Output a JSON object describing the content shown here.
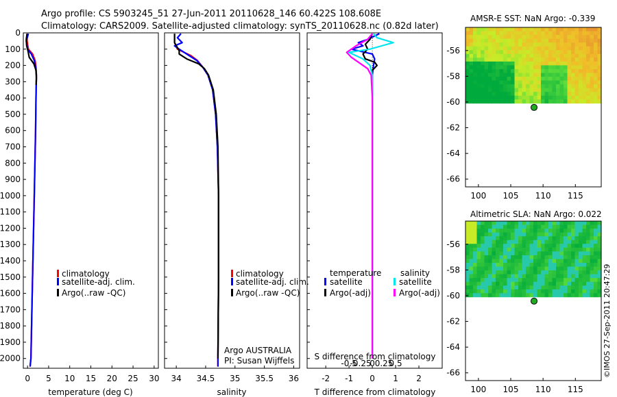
{
  "header": {
    "line1": "Argo profile: CS 5903245_51 27-Jun-2011 20110628_146 60.422S 108.608E",
    "line2": "Climatology: CARS2009. Satellite-adjusted climatology: synTS_20110628.nc (0.82d later)"
  },
  "colors": {
    "climatology": "#ff0000",
    "satellite": "#0000ff",
    "argo": "#000000",
    "salinity_satellite": "#00e5ee",
    "salinity_argo": "#ff00ff",
    "station_marker": "#22aa22"
  },
  "chart_data": [
    {
      "id": "temperature",
      "type": "line",
      "xlabel": "temperature (deg C)",
      "ylabel": "",
      "xlim": [
        -1,
        31
      ],
      "ylim": [
        2060,
        0
      ],
      "xticks": [
        0,
        5,
        10,
        15,
        20,
        25,
        30
      ],
      "yticks": [
        0,
        100,
        200,
        300,
        400,
        500,
        600,
        700,
        800,
        900,
        1000,
        1100,
        1200,
        1300,
        1400,
        1500,
        1600,
        1700,
        1800,
        1900,
        2000
      ],
      "legend": [
        "climatology",
        "satellite-adj. clim.",
        "Argo(..raw -QC)"
      ],
      "series": [
        {
          "name": "climatology",
          "color_key": "climatology",
          "depth": [
            5,
            50,
            100,
            130,
            170,
            210,
            260,
            400,
            600,
            1000,
            1500,
            2000,
            2050
          ],
          "values": [
            -0.1,
            -0.1,
            0.2,
            1.2,
            1.8,
            2.0,
            2.1,
            2.0,
            1.9,
            1.6,
            1.2,
            0.8,
            0.6
          ]
        },
        {
          "name": "satellite-adj. clim.",
          "color_key": "satellite",
          "depth": [
            5,
            50,
            100,
            130,
            170,
            210,
            260,
            400,
            600,
            1000,
            1500,
            2000,
            2050
          ],
          "values": [
            0.2,
            -0.3,
            0.0,
            0.9,
            1.6,
            1.9,
            2.1,
            2.0,
            1.9,
            1.6,
            1.2,
            0.8,
            0.6
          ]
        },
        {
          "name": "Argo(..raw -QC)",
          "color_key": "argo",
          "depth": [
            5,
            40,
            80,
            110,
            150,
            190,
            230,
            280,
            320
          ],
          "values": [
            -0.1,
            -0.3,
            -0.2,
            0.1,
            0.4,
            1.5,
            2.0,
            2.1,
            2.05
          ]
        }
      ]
    },
    {
      "id": "salinity",
      "type": "line",
      "xlabel": "salinity",
      "ylabel": "",
      "xlim": [
        33.8,
        36.1
      ],
      "ylim": [
        2060,
        0
      ],
      "xticks": [
        34,
        34.5,
        35,
        35.5,
        36
      ],
      "yticks": [
        0,
        100,
        200,
        300,
        400,
        500,
        600,
        700,
        800,
        900,
        1000,
        1100,
        1200,
        1300,
        1400,
        1500,
        1600,
        1700,
        1800,
        1900,
        2000
      ],
      "legend": [
        "climatology",
        "satellite-adj. clim.",
        "Argo(..raw -QC)"
      ],
      "annotations": [
        "Argo AUSTRALIA",
        "PI: Susan Wijffels"
      ],
      "series": [
        {
          "name": "climatology",
          "color_key": "climatology",
          "depth": [
            5,
            60,
            100,
            140,
            170,
            210,
            260,
            350,
            500,
            700,
            1000,
            1500,
            2000,
            2050
          ],
          "values": [
            33.97,
            33.97,
            34.02,
            34.25,
            34.36,
            34.45,
            34.54,
            34.62,
            34.67,
            34.7,
            34.72,
            34.72,
            34.71,
            34.71
          ]
        },
        {
          "name": "satellite-adj. clim.",
          "color_key": "satellite",
          "depth": [
            5,
            30,
            60,
            80,
            100,
            140,
            170,
            210,
            260,
            350,
            500,
            700,
            1000,
            1500,
            2000,
            2050
          ],
          "values": [
            34.08,
            34.02,
            34.1,
            33.97,
            34.05,
            34.22,
            34.35,
            34.45,
            34.54,
            34.62,
            34.67,
            34.7,
            34.72,
            34.72,
            34.71,
            34.71
          ]
        },
        {
          "name": "Argo(..raw -QC)",
          "color_key": "argo",
          "depth": [
            5,
            60,
            110,
            130,
            160,
            190,
            220,
            260,
            350,
            500,
            700,
            1000,
            1500,
            2000
          ],
          "values": [
            33.97,
            33.97,
            34.05,
            34.05,
            34.18,
            34.38,
            34.48,
            34.55,
            34.63,
            34.68,
            34.71,
            34.72,
            34.72,
            34.71
          ]
        }
      ]
    },
    {
      "id": "difference",
      "type": "line",
      "xlabel": "T difference from climatology",
      "xlabel_top": "S difference from climatology",
      "xlim": [
        -2.8,
        3.0
      ],
      "ylim": [
        2060,
        0
      ],
      "xticks": [
        -2,
        -1,
        0,
        1,
        2
      ],
      "xtick_labels": [
        "-2",
        "-1",
        "0",
        "1",
        "2"
      ],
      "sticks_labels": [
        "-0.5",
        "-0.25",
        "0",
        "0.25",
        "0.5"
      ],
      "yticks": [
        0,
        100,
        200,
        300,
        400,
        500,
        600,
        700,
        800,
        900,
        1000,
        1100,
        1200,
        1300,
        1400,
        1500,
        1600,
        1700,
        1800,
        1900,
        2000
      ],
      "legend_temperature_title": "temperature",
      "legend_salinity_title": "salinity",
      "legend_temperature": [
        "satellite",
        "Argo(-adj)"
      ],
      "legend_salinity": [
        "satellite",
        "Argo(-adj)"
      ],
      "series": [
        {
          "name": "temperature satellite",
          "color_key": "satellite",
          "depth": [
            5,
            40,
            60,
            80,
            100,
            130,
            160,
            200,
            260,
            400,
            1000,
            2000
          ],
          "values": [
            0.3,
            -0.2,
            -0.6,
            -0.4,
            -0.9,
            0.0,
            0.1,
            0.05,
            0.0,
            0.0,
            0.0,
            0.0
          ]
        },
        {
          "name": "temperature Argo(-adj)",
          "color_key": "argo",
          "depth": [
            5,
            40,
            70,
            100,
            130,
            160,
            180,
            200,
            230,
            260,
            400,
            1000,
            2000
          ],
          "values": [
            0.0,
            -0.1,
            -0.3,
            -0.2,
            -0.4,
            -0.3,
            0.1,
            0.2,
            0.0,
            0.0,
            0.0,
            0.0,
            0.0
          ]
        },
        {
          "name": "salinity satellite",
          "color_key": "salinity_satellite",
          "depth": [
            5,
            30,
            60,
            80,
            100,
            120,
            160,
            200,
            260,
            400,
            1000,
            2000
          ],
          "values": [
            0.05,
            0.2,
            0.9,
            0.4,
            -0.1,
            -1.0,
            -0.4,
            -0.1,
            0.0,
            0.0,
            0.0,
            0.0
          ]
        },
        {
          "name": "salinity Argo(-adj)",
          "color_key": "salinity_argo",
          "depth": [
            5,
            40,
            80,
            100,
            120,
            150,
            180,
            220,
            260,
            400,
            1000,
            2000
          ],
          "values": [
            0.0,
            -0.2,
            -0.7,
            -0.9,
            -1.1,
            -0.9,
            -0.6,
            -0.2,
            -0.05,
            0.0,
            0.0,
            0.0
          ]
        }
      ]
    },
    {
      "id": "sst_map",
      "type": "heatmap",
      "title": "AMSR-E SST: NaN Argo: -0.339",
      "xlim": [
        98,
        119
      ],
      "ylim": [
        -66.6,
        -54.2
      ],
      "xticks": [
        100,
        105,
        110,
        115
      ],
      "yticks": [
        -56,
        -58,
        -60,
        -62,
        -64,
        -66
      ],
      "data_lat_min": -60.1,
      "argo_position": {
        "lon": 108.608,
        "lat": -60.422
      }
    },
    {
      "id": "sla_map",
      "type": "heatmap",
      "title": "Altimetric SLA: NaN Argo: 0.022",
      "xlim": [
        98,
        119
      ],
      "ylim": [
        -66.6,
        -54.2
      ],
      "xticks": [
        100,
        105,
        110,
        115
      ],
      "yticks": [
        -56,
        -58,
        -60,
        -62,
        -64,
        -66
      ],
      "data_lat_min": -60.1,
      "argo_position": {
        "lon": 108.608,
        "lat": -60.422
      }
    }
  ],
  "footer": {
    "imos_stamp": "©IMOS 27-Sep-2011 20:47:29"
  }
}
